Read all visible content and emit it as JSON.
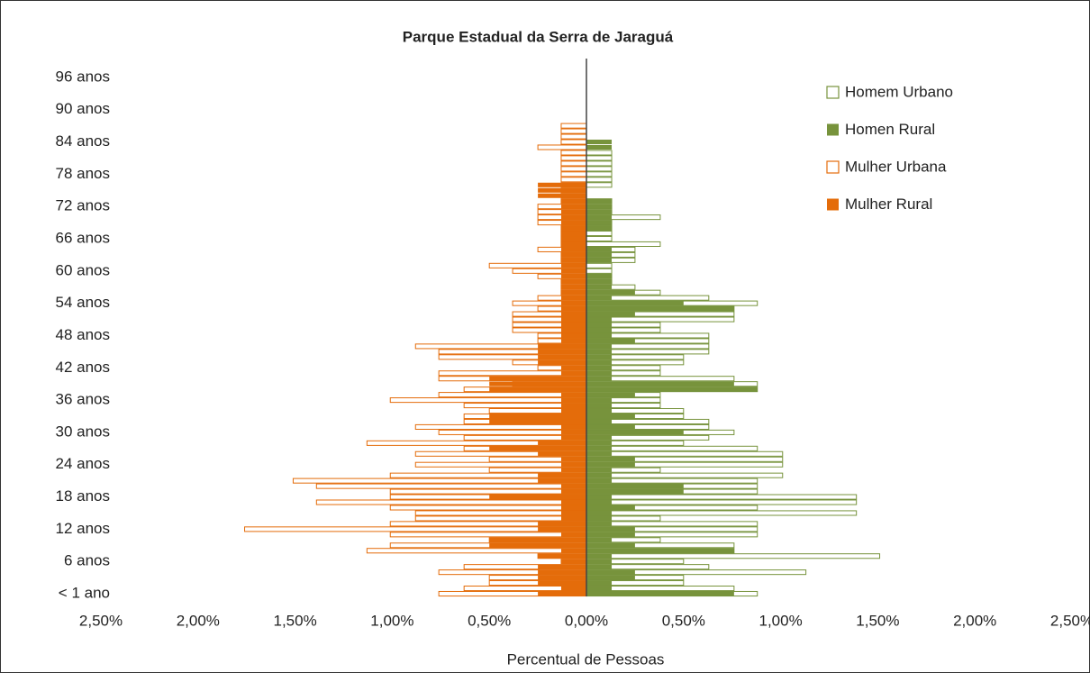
{
  "chart_data": {
    "type": "bar",
    "orientation": "horizontal",
    "title": "Parque Estadual da Serra de Jaraguá",
    "x_label": "Percentual de Pessoas",
    "categories": [
      "< 1 ano",
      null,
      null,
      null,
      null,
      null,
      "6 anos",
      null,
      null,
      null,
      null,
      null,
      "12 anos",
      null,
      null,
      null,
      null,
      null,
      "18 anos",
      null,
      null,
      null,
      null,
      null,
      "24 anos",
      null,
      null,
      null,
      null,
      null,
      "30 anos",
      null,
      null,
      null,
      null,
      null,
      "36 anos",
      null,
      null,
      null,
      null,
      null,
      "42 anos",
      null,
      null,
      null,
      null,
      null,
      "48 anos",
      null,
      null,
      null,
      null,
      null,
      "54 anos",
      null,
      null,
      null,
      null,
      null,
      "60 anos",
      null,
      null,
      null,
      null,
      null,
      "66 anos",
      null,
      null,
      null,
      null,
      null,
      "72 anos",
      null,
      null,
      null,
      null,
      null,
      "78 anos",
      null,
      null,
      null,
      null,
      null,
      "84 anos",
      null,
      null,
      null,
      null,
      null,
      "90 anos",
      null,
      null,
      null,
      null,
      null,
      "96 anos",
      null,
      null,
      null
    ],
    "series": [
      {
        "name": "Homem Urbano",
        "color": "#77933c",
        "style": "outline",
        "values": [
          0.88,
          0.76,
          0.5,
          0.5,
          1.13,
          0.63,
          0.5,
          1.51,
          0.76,
          0.76,
          0.38,
          0.88,
          0.88,
          0.88,
          0.38,
          1.39,
          0.88,
          1.39,
          1.39,
          0.88,
          0.88,
          0.88,
          1.01,
          0.38,
          1.01,
          1.01,
          1.01,
          0.88,
          0.5,
          0.63,
          0.76,
          0.63,
          0.63,
          0.5,
          0.5,
          0.38,
          0.38,
          0.38,
          0.88,
          0.88,
          0.76,
          0.38,
          0.38,
          0.5,
          0.5,
          0.63,
          0.63,
          0.63,
          0.63,
          0.38,
          0.38,
          0.76,
          0.76,
          0.76,
          0.88,
          0.63,
          0.38,
          0.25,
          0.13,
          0.13,
          0.13,
          0.13,
          0.25,
          0.25,
          0.25,
          0.38,
          0.13,
          0.13,
          0.13,
          0.13,
          0.38,
          0.13,
          0.13,
          0.13,
          0,
          0,
          0.13,
          0.13,
          0.13,
          0.13,
          0.13,
          0.13,
          0.13,
          0,
          0,
          0,
          0,
          0,
          0,
          0,
          0,
          0,
          0,
          0,
          0,
          0,
          0,
          0,
          0,
          0
        ]
      },
      {
        "name": "Homen Rural",
        "color": "#77933c",
        "style": "filled",
        "values": [
          0.76,
          0.13,
          0.13,
          0.25,
          0.25,
          0.13,
          0.13,
          0.13,
          0.76,
          0.25,
          0.13,
          0.25,
          0.25,
          0.13,
          0.13,
          0.13,
          0.25,
          0.13,
          0.13,
          0.5,
          0.5,
          0.13,
          0.13,
          0.13,
          0.25,
          0.25,
          0.13,
          0.13,
          0.13,
          0.13,
          0.5,
          0.25,
          0.13,
          0.25,
          0.13,
          0.13,
          0.13,
          0.25,
          0.88,
          0.76,
          0.13,
          0.13,
          0.13,
          0.13,
          0.13,
          0.13,
          0.13,
          0.25,
          0.13,
          0.13,
          0.13,
          0.13,
          0.25,
          0.76,
          0.5,
          0.13,
          0.25,
          0.13,
          0.13,
          0.13,
          0,
          0,
          0.13,
          0.13,
          0.13,
          0,
          0,
          0,
          0.13,
          0.13,
          0.13,
          0.13,
          0.13,
          0.13,
          0,
          0,
          0,
          0,
          0,
          0,
          0,
          0,
          0,
          0.13,
          0.13,
          0,
          0,
          0,
          0,
          0,
          0,
          0,
          0,
          0,
          0,
          0,
          0,
          0,
          0,
          0
        ]
      },
      {
        "name": "Mulher Urbana",
        "color": "#e46c0a",
        "style": "outline",
        "values": [
          -0.76,
          -0.63,
          -0.5,
          -0.5,
          -0.76,
          -0.63,
          -0.13,
          -0.25,
          -1.13,
          -1.01,
          -0.5,
          -1.01,
          -1.76,
          -1.01,
          -0.88,
          -0.88,
          -1.01,
          -1.39,
          -1.01,
          -1.01,
          -1.39,
          -1.51,
          -1.01,
          -0.5,
          -0.88,
          -0.5,
          -0.88,
          -0.63,
          -1.13,
          -0.63,
          -0.76,
          -0.88,
          -0.63,
          -0.63,
          -0.5,
          -0.63,
          -1.01,
          -0.76,
          -0.63,
          -0.38,
          -0.76,
          -0.76,
          -0.25,
          -0.38,
          -0.76,
          -0.76,
          -0.88,
          -0.25,
          -0.25,
          -0.38,
          -0.38,
          -0.38,
          -0.38,
          -0.25,
          -0.38,
          -0.25,
          -0.13,
          -0.13,
          -0.13,
          -0.25,
          -0.38,
          -0.5,
          -0.13,
          -0.13,
          -0.25,
          -0.13,
          -0.13,
          -0.13,
          -0.13,
          -0.25,
          -0.25,
          -0.25,
          -0.25,
          -0.13,
          -0.13,
          -0.13,
          -0.13,
          -0.13,
          -0.13,
          -0.13,
          -0.13,
          -0.13,
          -0.13,
          -0.25,
          -0.13,
          -0.13,
          -0.13,
          -0.13,
          0,
          0,
          0,
          0,
          0,
          0,
          0,
          0,
          0,
          0,
          0,
          0
        ]
      },
      {
        "name": "Mulher Rural",
        "color": "#e46c0a",
        "style": "filled",
        "values": [
          -0.25,
          -0.13,
          -0.25,
          -0.25,
          -0.25,
          -0.25,
          -0.13,
          -0.25,
          -0.13,
          -0.5,
          -0.5,
          -0.13,
          -0.25,
          -0.25,
          -0.13,
          -0.13,
          -0.13,
          -0.13,
          -0.5,
          -0.13,
          -0.13,
          -0.25,
          -0.25,
          -0.13,
          -0.13,
          -0.13,
          -0.25,
          -0.5,
          -0.25,
          -0.13,
          -0.13,
          -0.13,
          -0.5,
          -0.5,
          -0.13,
          -0.13,
          -0.13,
          -0.13,
          -0.5,
          -0.5,
          -0.5,
          -0.13,
          -0.13,
          -0.25,
          -0.25,
          -0.25,
          -0.25,
          -0.13,
          -0.13,
          -0.13,
          -0.13,
          -0.13,
          -0.13,
          -0.13,
          -0.13,
          -0.13,
          -0.13,
          -0.13,
          -0.13,
          -0.13,
          -0.13,
          -0.13,
          -0.13,
          -0.13,
          -0.13,
          -0.13,
          -0.13,
          -0.13,
          -0.13,
          -0.13,
          -0.13,
          -0.13,
          -0.13,
          -0.13,
          -0.25,
          -0.25,
          -0.25,
          0,
          0,
          0,
          0,
          0,
          0,
          0,
          0,
          0,
          0,
          0,
          0,
          0,
          0,
          0,
          0,
          0,
          0,
          0,
          0,
          0,
          0,
          0
        ]
      }
    ],
    "xlim": [
      -2.5,
      2.5
    ],
    "xticks": [
      {
        "value": -2.5,
        "label": "2,50%"
      },
      {
        "value": -2,
        "label": "2,00%"
      },
      {
        "value": -1.5,
        "label": "1,50%"
      },
      {
        "value": -1,
        "label": "1,00%"
      },
      {
        "value": -0.5,
        "label": "0,50%"
      },
      {
        "value": 0,
        "label": "0,00%"
      },
      {
        "value": 0.5,
        "label": "0,50%"
      },
      {
        "value": 1,
        "label": "1,00%"
      },
      {
        "value": 1.5,
        "label": "1,50%"
      },
      {
        "value": 2,
        "label": "2,00%"
      },
      {
        "value": 2.5,
        "label": "2,50%"
      }
    ],
    "legend": "top-right",
    "grid": false
  }
}
